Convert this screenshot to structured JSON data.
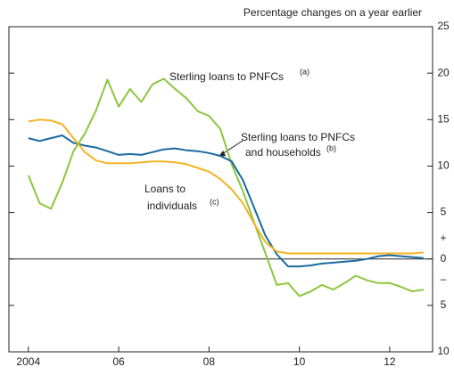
{
  "chart_data": {
    "type": "line",
    "subtitle": "Percentage changes on a year earlier",
    "x": [
      2004,
      2004.25,
      2004.5,
      2004.75,
      2005,
      2005.25,
      2005.5,
      2005.75,
      2006,
      2006.25,
      2006.5,
      2006.75,
      2007,
      2007.25,
      2007.5,
      2007.75,
      2008,
      2008.25,
      2008.5,
      2008.75,
      2009,
      2009.25,
      2009.5,
      2009.75,
      2010,
      2010.25,
      2010.5,
      2010.75,
      2011,
      2011.25,
      2011.5,
      2011.75,
      2012,
      2012.25,
      2012.5,
      2012.75
    ],
    "series": [
      {
        "label_lines": [
          "Sterling loans to PNFCs"
        ],
        "note": "(a)",
        "color": "#8dc63f",
        "values": [
          9,
          6,
          5.4,
          8.2,
          11.6,
          13.5,
          16,
          19.3,
          16.4,
          18.3,
          16.9,
          18.8,
          19.4,
          18.3,
          17.3,
          15.9,
          15.4,
          14,
          10.2,
          7.3,
          3.9,
          0.6,
          -2.8,
          -2.6,
          -4,
          -3.5,
          -2.8,
          -3.3,
          -2.6,
          -1.8,
          -2.3,
          -2.6,
          -2.6,
          -3,
          -3.5,
          -3.3
        ]
      },
      {
        "label_lines": [
          "Sterling loans to PNFCs",
          "and households"
        ],
        "note": "(b)",
        "color": "#1a6aa0",
        "values": [
          13,
          12.7,
          13,
          13.3,
          12.5,
          12.2,
          12,
          11.6,
          11.2,
          11.3,
          11.2,
          11.5,
          11.8,
          11.9,
          11.7,
          11.6,
          11.4,
          11.1,
          10.5,
          8.5,
          5.5,
          2.5,
          0.5,
          -0.8,
          -0.8,
          -0.7,
          -0.5,
          -0.4,
          -0.3,
          -0.2,
          0,
          0.3,
          0.4,
          0.3,
          0.2,
          0.1
        ]
      },
      {
        "label_lines": [
          "Loans to",
          "individuals"
        ],
        "note": "(c)",
        "color": "#f5b323",
        "values": [
          14.8,
          15,
          14.9,
          14.5,
          13,
          11.5,
          10.6,
          10.3,
          10.3,
          10.3,
          10.4,
          10.5,
          10.5,
          10.4,
          10.2,
          9.8,
          9.4,
          8.6,
          7.5,
          6,
          3.8,
          1.8,
          0.8,
          0.6,
          0.6,
          0.6,
          0.6,
          0.6,
          0.6,
          0.6,
          0.6,
          0.6,
          0.6,
          0.6,
          0.6,
          0.7
        ]
      }
    ],
    "xlim": [
      2003.57,
      2012.95
    ],
    "xticks": [
      2004,
      {
        "value": 2006,
        "label": "06"
      },
      {
        "value": 2008,
        "label": "08"
      },
      {
        "value": 2010,
        "label": "10"
      },
      {
        "value": 2012,
        "label": "12"
      }
    ],
    "ylim": [
      -10,
      25
    ],
    "yticks": [
      25,
      20,
      15,
      10,
      5,
      0,
      {
        "value": -5,
        "label": "5"
      },
      {
        "value": -10,
        "label": "10"
      }
    ],
    "axis_signs": [
      "+",
      "–"
    ]
  }
}
